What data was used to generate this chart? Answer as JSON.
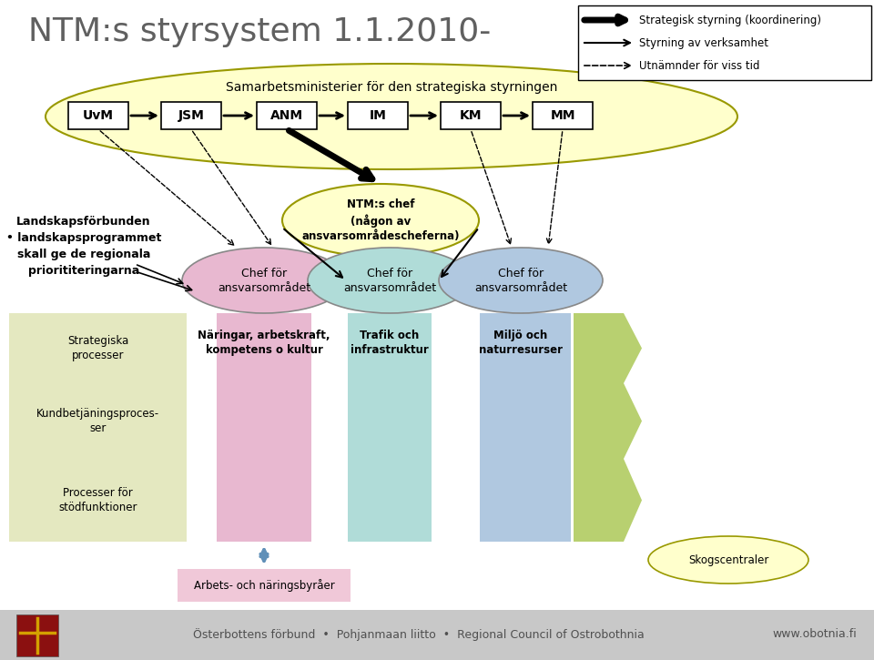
{
  "title": "NTM:s styrsystem 1.1.2010-",
  "background_color": "#ffffff",
  "footer_bg": "#c8c8c8",
  "footer_text": "Österbottens förbund  •  Pohjanmaan liitto  •  Regional Council of Ostrobothnia",
  "footer_url": "www.obotnia.fi",
  "legend_items": [
    {
      "label": "Strategisk styrning (koordinering)",
      "style": "thick"
    },
    {
      "label": "Styrning av verksamhet",
      "style": "thin"
    },
    {
      "label": "Utnämnder för viss tid",
      "style": "dashed"
    }
  ],
  "oval_fill": "#ffffcc",
  "oval_stroke": "#999900",
  "oval_label": "Samarbetsministerier för den strategiska styrningen",
  "ministries": [
    "UvM",
    "JSM",
    "ANM",
    "IM",
    "KM",
    "MM"
  ],
  "ntm_chef_label": "NTM:s chef\n(någon av\nansvarsområdescheferna)",
  "landscape_label": "Landskapsförbunden\n• landskapsprogrammet\nskall ge de regionala\npriorititeringarna",
  "columns": [
    {
      "chef_label": "Chef för\nansvarsområdet",
      "area_label": "Näringar, arbetskraft,\nkompetens o kultur",
      "col_color": "#e8b8d0",
      "col_color_light": "#eec8dc"
    },
    {
      "chef_label": "Chef för\nansvarsområdet",
      "area_label": "Trafik och\ninfrastruktur",
      "col_color": "#b0dcd8",
      "col_color_light": "#c8e8e4"
    },
    {
      "chef_label": "Chef för\nansvarsområdet",
      "area_label": "Miljö och\nnaturresurser",
      "col_color": "#b0c8e0",
      "col_color_light": "#c8daf0"
    }
  ],
  "row_labels": [
    "Strategiska\nprocesser",
    "Kundbetjäningsproces-\nser",
    "Processer för\nstödfunktioner"
  ],
  "row_fill": "#e4e8c0",
  "arbets_label": "Arbets- och näringsbyråer",
  "arbets_fill": "#f0c8d8",
  "skogs_label": "Skogscentraler",
  "skogs_fill": "#ffffcc",
  "arrow_green": "#b8d070"
}
